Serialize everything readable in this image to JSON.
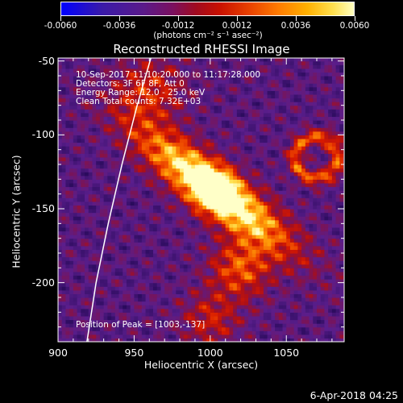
{
  "colorbar": {
    "tick_labels": [
      "-0.0060",
      "-0.0036",
      "-0.0012",
      "0.0012",
      "0.0036",
      "0.0060"
    ],
    "unit_label": "(photons cm⁻² s⁻¹ asec⁻²)"
  },
  "chart_data": {
    "type": "heatmap",
    "title": "Reconstructed RHESSI Image",
    "xlabel": "Heliocentric X (arcsec)",
    "ylabel": "Heliocentric Y (arcsec)",
    "xlim": [
      900,
      1088
    ],
    "ylim": [
      -240,
      -48
    ],
    "x_tick_labels": [
      "900",
      "950",
      "1000",
      "1050"
    ],
    "y_tick_labels": [
      "-50",
      "-100",
      "-150",
      "-200"
    ],
    "color_range": [
      -0.006,
      0.006
    ],
    "peak": [
      1003,
      -137
    ],
    "annotations": [
      "10-Sep-2017 11:10:20.000 to 11:17:28.000",
      "Detectors: 3F 6F 8F, Att 0",
      "Energy Range: 12.0 - 25.0 keV",
      "Clean     Total counts: 7.32E+03"
    ],
    "peak_label": "Position of Peak = [1003,-137]",
    "limb_curve": [
      [
        919,
        -240
      ],
      [
        925,
        -200
      ],
      [
        933,
        -160
      ],
      [
        942,
        -120
      ],
      [
        952,
        -80
      ],
      [
        961,
        -48
      ]
    ]
  },
  "footer": {
    "date": "6-Apr-2018 04:25"
  }
}
